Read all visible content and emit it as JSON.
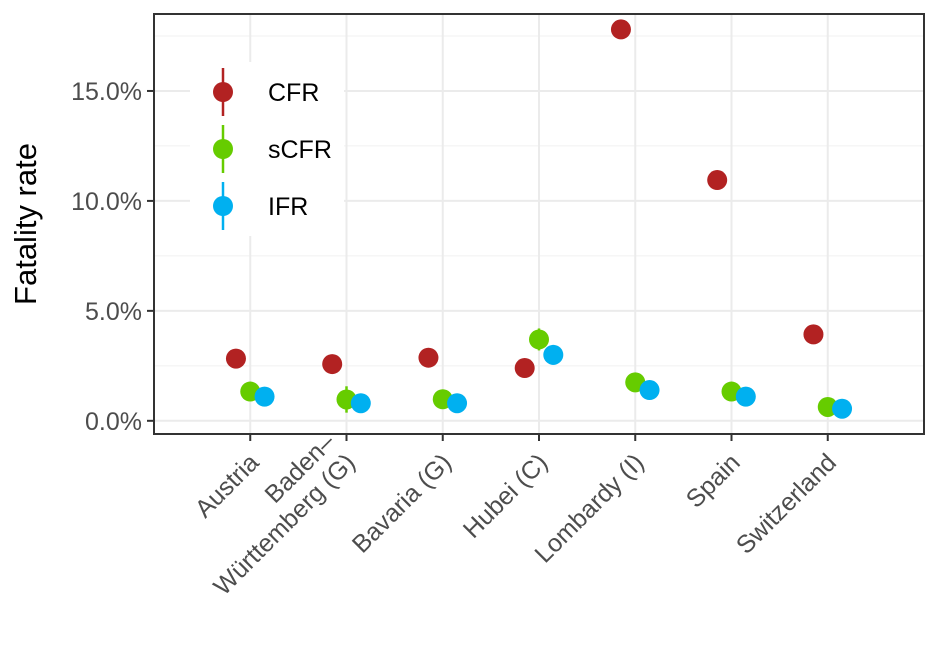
{
  "chart_data": {
    "type": "scatter",
    "ylabel": "Fatality rate",
    "xlabel": "",
    "ylim": [
      -0.006,
      0.185
    ],
    "yticks": [
      0,
      0.05,
      0.1,
      0.15
    ],
    "ytick_labels": [
      "0.0%",
      "5.0%",
      "10.0%",
      "15.0%"
    ],
    "grid": true,
    "legend_position": "top-left",
    "categories": [
      {
        "lines": [
          "Austria"
        ]
      },
      {
        "lines": [
          "Baden–",
          "Württemberg (G)"
        ]
      },
      {
        "lines": [
          "Bavaria (G)"
        ]
      },
      {
        "lines": [
          "Hubei (C)"
        ]
      },
      {
        "lines": [
          "Lombardy (I)"
        ]
      },
      {
        "lines": [
          "Spain"
        ]
      },
      {
        "lines": [
          "Switzerland"
        ]
      }
    ],
    "series": [
      {
        "name": "CFR",
        "color": "#B22222",
        "values": [
          0.0283,
          0.0258,
          0.0287,
          0.024,
          0.178,
          0.1095,
          0.0393
        ],
        "errors": [
          0.0003,
          0.0003,
          0.0003,
          0.0003,
          0.0006,
          0.0004,
          0.0005
        ]
      },
      {
        "name": "sCFR",
        "color": "#66CC00",
        "values": [
          0.0133,
          0.0097,
          0.0098,
          0.037,
          0.0175,
          0.0133,
          0.0063
        ],
        "errors": [
          0.001,
          0.006,
          0.001,
          0.005,
          0.001,
          0.0008,
          0.0008
        ]
      },
      {
        "name": "IFR",
        "color": "#00B0F0",
        "values": [
          0.011,
          0.008,
          0.008,
          0.03,
          0.014,
          0.011,
          0.0055
        ],
        "errors": [
          0.0008,
          0.002,
          0.0008,
          0.0045,
          0.001,
          0.0008,
          0.0007
        ]
      }
    ]
  }
}
